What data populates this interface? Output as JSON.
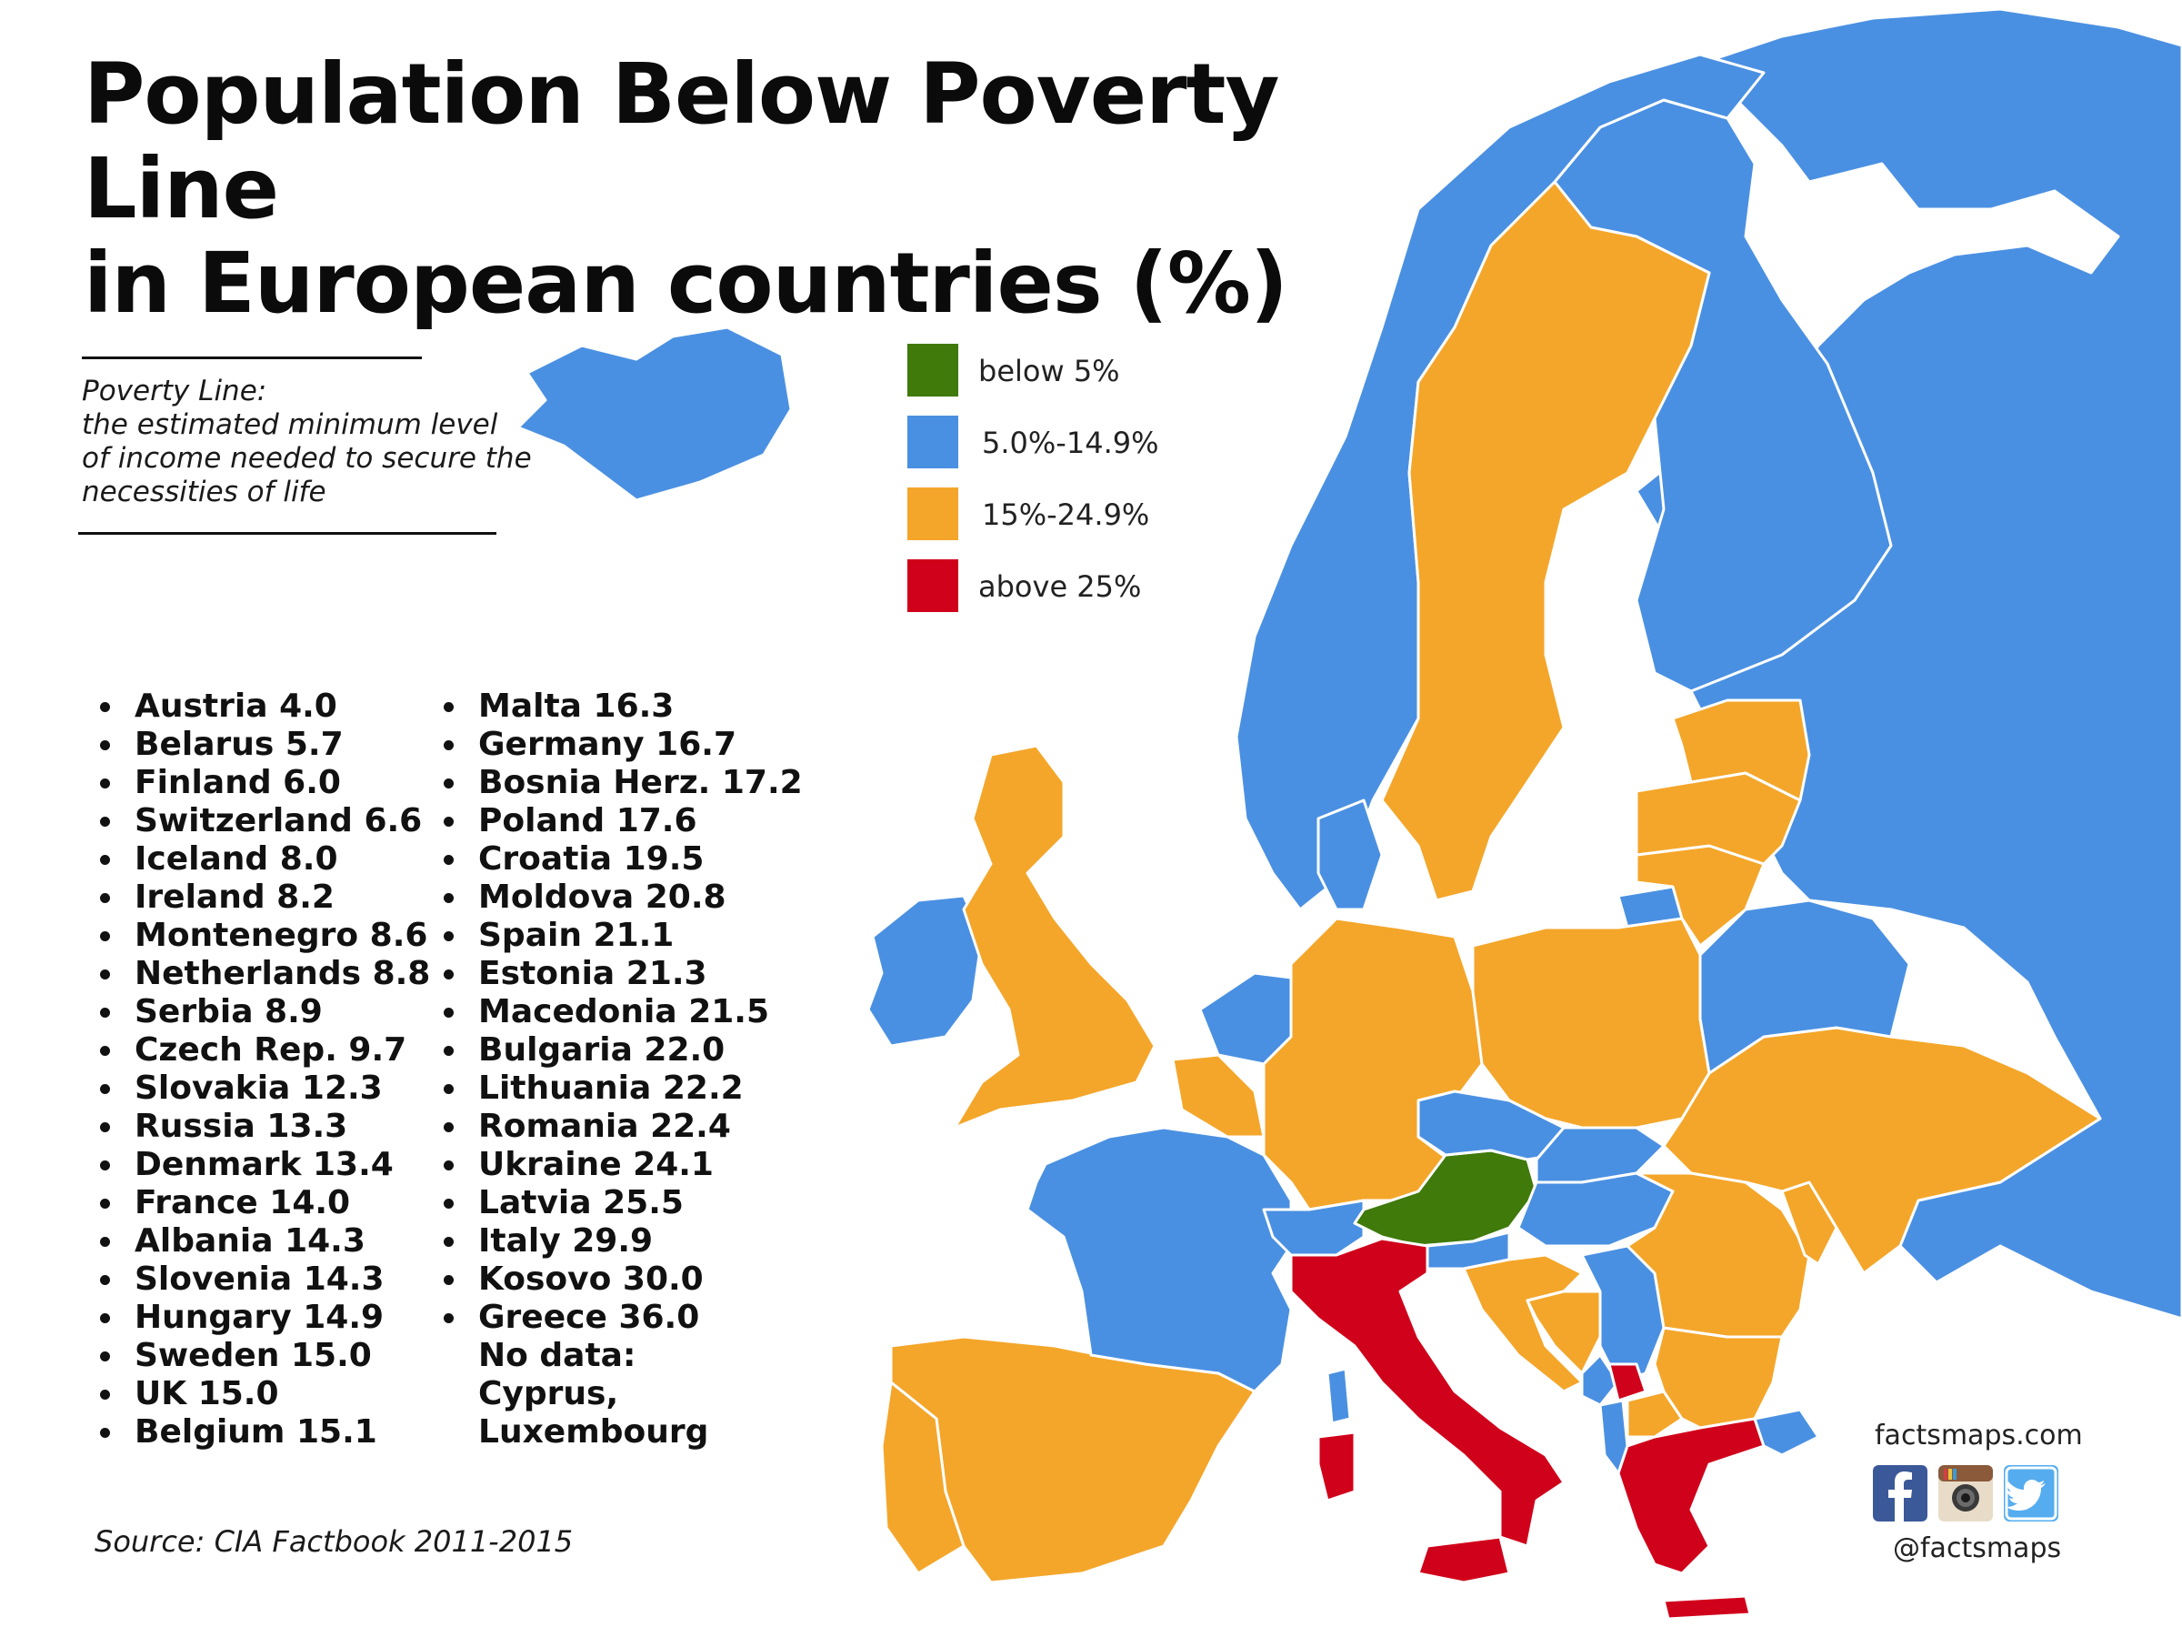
{
  "title": {
    "line1": "Population Below Poverty Line",
    "line2": "in European countries (%)"
  },
  "definition": {
    "line1": "Poverty Line:",
    "line2": "the estimated minimum level",
    "line3": "of income needed to secure the",
    "line4": "necessities of life"
  },
  "legend": [
    {
      "label": "below 5%",
      "color": "#3f7a0b"
    },
    {
      "label": "5.0%-14.9%",
      "color": "#4a90e2"
    },
    {
      "label": "15%-24.9%",
      "color": "#f4a62a"
    },
    {
      "label": "above 25%",
      "color": "#d0021b"
    }
  ],
  "countries": [
    {
      "name": "Austria",
      "value": "4.0"
    },
    {
      "name": "Belarus",
      "value": "5.7"
    },
    {
      "name": "Finland",
      "value": "6.0"
    },
    {
      "name": "Switzerland",
      "value": "6.6"
    },
    {
      "name": "Iceland",
      "value": "8.0"
    },
    {
      "name": "Ireland",
      "value": "8.2"
    },
    {
      "name": "Montenegro",
      "value": "8.6"
    },
    {
      "name": "Netherlands",
      "value": "8.8"
    },
    {
      "name": "Serbia",
      "value": "8.9"
    },
    {
      "name": "Czech Rep.",
      "value": "9.7"
    },
    {
      "name": "Slovakia",
      "value": "12.3"
    },
    {
      "name": "Russia",
      "value": "13.3"
    },
    {
      "name": "Denmark",
      "value": "13.4"
    },
    {
      "name": "France",
      "value": "14.0"
    },
    {
      "name": "Albania",
      "value": "14.3"
    },
    {
      "name": "Slovenia",
      "value": "14.3"
    },
    {
      "name": "Hungary",
      "value": "14.9"
    },
    {
      "name": "Sweden",
      "value": "15.0"
    },
    {
      "name": "UK",
      "value": "15.0"
    },
    {
      "name": "Belgium",
      "value": "15.1"
    },
    {
      "name": "Malta",
      "value": "16.3"
    },
    {
      "name": "Germany",
      "value": "16.7"
    },
    {
      "name": "Bosnia Herz.",
      "value": "17.2"
    },
    {
      "name": "Poland",
      "value": "17.6"
    },
    {
      "name": "Croatia",
      "value": "19.5"
    },
    {
      "name": "Moldova",
      "value": "20.8"
    },
    {
      "name": "Spain",
      "value": "21.1"
    },
    {
      "name": "Estonia",
      "value": "21.3"
    },
    {
      "name": "Macedonia",
      "value": "21.5"
    },
    {
      "name": "Bulgaria",
      "value": "22.0"
    },
    {
      "name": "Lithuania",
      "value": "22.2"
    },
    {
      "name": "Romania",
      "value": "22.4"
    },
    {
      "name": "Ukraine",
      "value": "24.1"
    },
    {
      "name": "Latvia",
      "value": "25.5"
    },
    {
      "name": "Italy",
      "value": "29.9"
    },
    {
      "name": "Kosovo",
      "value": "30.0"
    },
    {
      "name": "Greece",
      "value": "36.0"
    }
  ],
  "no_data": {
    "heading": "No data:",
    "line1": "Cyprus,",
    "line2": "Luxembourg"
  },
  "source": "Source: CIA Factbook 2011-2015",
  "credits": {
    "site": "factsmaps.com",
    "handle": "@factsmaps",
    "icons": [
      "facebook-icon",
      "instagram-icon",
      "twitter-icon"
    ]
  },
  "colors": {
    "below_5": "#3f7a0b",
    "range_5_15": "#4a90e2",
    "range_15_25": "#f4a62a",
    "above_25": "#d0021b",
    "border": "#ffffff"
  }
}
